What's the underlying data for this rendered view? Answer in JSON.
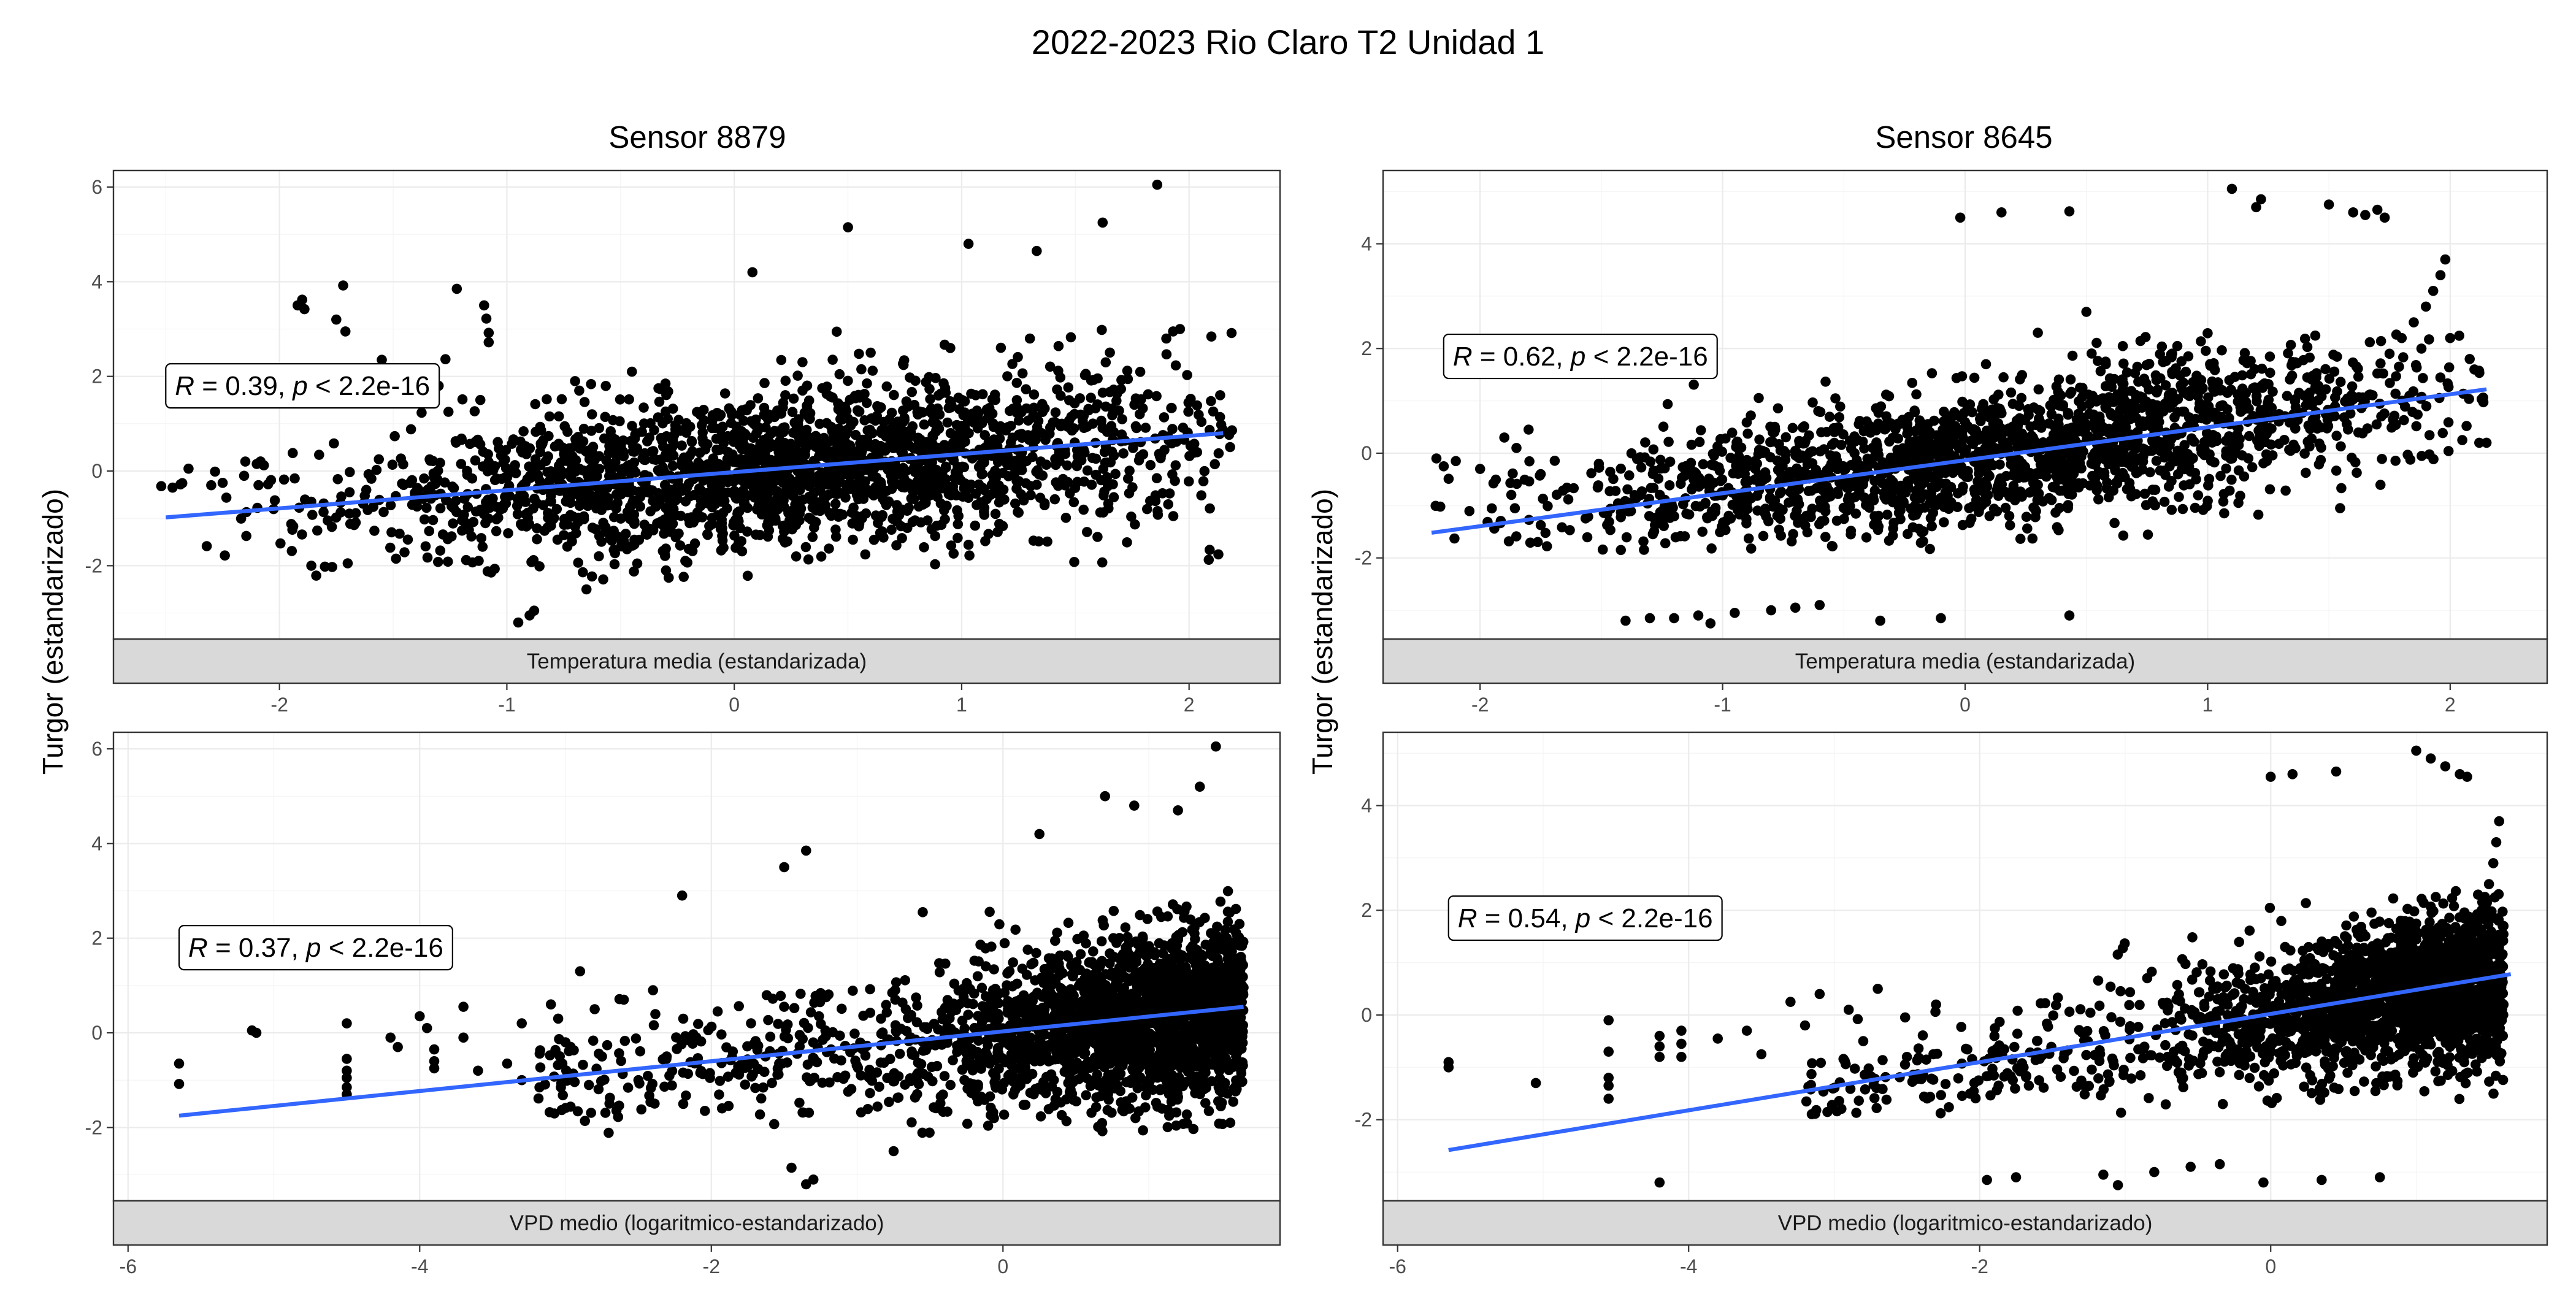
{
  "title": "2022-2023 Rio Claro T2 Unidad 1",
  "ylabel": "Turgor (estandarizado)",
  "columns": [
    "Sensor 8879",
    "Sensor 8645"
  ],
  "rows": [
    "Temperatura media (estandarizada)",
    "VPD medio (logaritmico-estandarizado)"
  ],
  "colors": {
    "points": "#000000",
    "fit_line": "#3366ff",
    "strip": "#d9d9d9",
    "grid": "#ebebeb"
  },
  "chart_data": [
    {
      "type": "scatter",
      "column": "Sensor 8879",
      "strip": "Temperatura media (estandarizada)",
      "xlabel": "Temperatura media (estandarizada)",
      "ylabel": "Turgor (estandarizado)",
      "xlim": [
        -2.73,
        2.4
      ],
      "ylim": [
        -3.55,
        6.35
      ],
      "xticks": [
        -2,
        -1,
        0,
        1,
        2
      ],
      "xtick_labels": [
        "-2",
        "-1",
        "0",
        "1",
        "2"
      ],
      "yticks": [
        -2,
        0,
        2,
        4,
        6
      ],
      "ytick_labels": [
        "-2",
        "0",
        "2",
        "4",
        "6"
      ],
      "fit_line": {
        "x": [
          -2.5,
          2.15
        ],
        "y": [
          -0.98,
          0.8
        ]
      },
      "annotation": {
        "r_label": "R",
        "r_value": " = 0.39, ",
        "p_label": "p",
        "p_value": " < 2.2e-16",
        "x": -2.5,
        "y": 1.8
      },
      "cloud": {
        "n": 2200,
        "x_center": 0.25,
        "x_spread": 0.95,
        "x_min": -2.5,
        "x_max": 2.2,
        "slope": 0.38,
        "intercept": -0.03,
        "noise": 0.72,
        "noise_scale_low": 1.0,
        "noise_scale_high": 1.25,
        "y_min": -2.3,
        "y_max": 3.0,
        "skew": 0,
        "seed": 11
      },
      "points": [
        [
          -2.52,
          -0.32
        ],
        [
          -2.47,
          -0.35
        ],
        [
          -2.4,
          0.05
        ],
        [
          -2.3,
          -0.3
        ],
        [
          -2.25,
          -0.25
        ],
        [
          -2.15,
          0.2
        ],
        [
          -2.1,
          0.15
        ],
        [
          -2.05,
          -0.28
        ],
        [
          -1.98,
          -0.18
        ],
        [
          -1.92,
          3.5
        ],
        [
          -1.9,
          3.62
        ],
        [
          -1.89,
          3.42
        ],
        [
          -1.86,
          -2.0
        ],
        [
          -1.8,
          -2.02
        ],
        [
          -1.75,
          3.2
        ],
        [
          -1.72,
          3.92
        ],
        [
          -1.71,
          2.95
        ],
        [
          -1.7,
          -1.95
        ],
        [
          -1.55,
          2.35
        ],
        [
          -1.22,
          3.85
        ],
        [
          -1.1,
          3.5
        ],
        [
          -1.09,
          3.22
        ],
        [
          -1.08,
          2.92
        ],
        [
          -1.08,
          2.72
        ],
        [
          -0.95,
          -3.2
        ],
        [
          -0.9,
          -3.05
        ],
        [
          -0.88,
          -2.95
        ],
        [
          -0.65,
          -2.5
        ],
        [
          -0.3,
          -2.1
        ],
        [
          0.08,
          4.2
        ],
        [
          0.5,
          5.15
        ],
        [
          1.03,
          4.8
        ],
        [
          1.33,
          4.65
        ],
        [
          1.62,
          5.25
        ],
        [
          1.86,
          6.05
        ],
        [
          1.9,
          2.8
        ],
        [
          1.93,
          2.95
        ],
        [
          1.96,
          3.0
        ],
        [
          0.95,
          2.6
        ],
        [
          1.3,
          2.8
        ],
        [
          -1.4,
          1.6
        ],
        [
          -1.3,
          1.8
        ],
        [
          -0.7,
          1.9
        ],
        [
          -0.45,
          2.1
        ],
        [
          0.3,
          2.3
        ],
        [
          0.6,
          2.5
        ]
      ]
    },
    {
      "type": "scatter",
      "column": "Sensor 8645",
      "strip": "Temperatura media (estandarizada)",
      "xlabel": "Temperatura media (estandarizada)",
      "ylabel": "Turgor (estandarizado)",
      "xlim": [
        -2.4,
        2.4
      ],
      "ylim": [
        -3.55,
        5.4
      ],
      "xticks": [
        -2,
        -1,
        0,
        1,
        2
      ],
      "xtick_labels": [
        "-2",
        "-1",
        "0",
        "1",
        "2"
      ],
      "yticks": [
        -2,
        0,
        2,
        4
      ],
      "ytick_labels": [
        "-2",
        "0",
        "2",
        "4"
      ],
      "fit_line": {
        "x": [
          -2.2,
          2.15
        ],
        "y": [
          -1.52,
          1.22
        ]
      },
      "annotation": {
        "r_label": "R",
        "r_value": " = 0.62, ",
        "p_label": "p",
        "p_value": " < 2.2e-16",
        "x": -2.15,
        "y": 1.85
      },
      "cloud": {
        "n": 1900,
        "x_center": 0.15,
        "x_spread": 0.95,
        "x_min": -2.2,
        "x_max": 2.15,
        "slope": 0.63,
        "intercept": -0.1,
        "noise": 0.6,
        "noise_scale_low": 1.0,
        "noise_scale_high": 1.2,
        "y_min": -1.85,
        "y_max": 2.4,
        "skew": 0,
        "seed": 23
      },
      "points": [
        [
          -2.18,
          -0.1
        ],
        [
          -2.15,
          -0.25
        ],
        [
          -2.1,
          -0.15
        ],
        [
          -2.0,
          -0.3
        ],
        [
          -1.9,
          0.3
        ],
        [
          -1.85,
          0.1
        ],
        [
          -1.8,
          0.45
        ],
        [
          -1.75,
          -0.4
        ],
        [
          -1.4,
          -3.2
        ],
        [
          -1.3,
          -3.15
        ],
        [
          -1.2,
          -3.15
        ],
        [
          -1.1,
          -3.1
        ],
        [
          -1.05,
          -3.25
        ],
        [
          -0.95,
          -3.05
        ],
        [
          -0.8,
          -3.0
        ],
        [
          -0.7,
          -2.95
        ],
        [
          -0.6,
          -2.9
        ],
        [
          -0.35,
          -3.2
        ],
        [
          -0.1,
          -3.15
        ],
        [
          0.43,
          -3.1
        ],
        [
          -0.02,
          4.5
        ],
        [
          0.15,
          4.6
        ],
        [
          0.43,
          4.62
        ],
        [
          1.1,
          5.05
        ],
        [
          1.2,
          4.7
        ],
        [
          1.22,
          4.85
        ],
        [
          1.5,
          4.75
        ],
        [
          1.6,
          4.6
        ],
        [
          1.65,
          4.55
        ],
        [
          1.7,
          4.65
        ],
        [
          1.73,
          4.5
        ],
        [
          1.75,
          1.9
        ],
        [
          1.8,
          2.2
        ],
        [
          1.85,
          2.5
        ],
        [
          1.9,
          2.8
        ],
        [
          1.93,
          3.1
        ],
        [
          1.96,
          3.4
        ],
        [
          1.98,
          3.7
        ],
        [
          2.0,
          2.2
        ],
        [
          2.1,
          1.6
        ],
        [
          2.15,
          0.2
        ],
        [
          2.12,
          0.2
        ],
        [
          2.05,
          0.25
        ],
        [
          0.5,
          2.7
        ],
        [
          0.3,
          2.3
        ]
      ]
    },
    {
      "type": "scatter",
      "column": "Sensor 8879",
      "strip": "VPD medio (logaritmico-estandarizado)",
      "xlabel": "VPD medio (logaritmico-estandarizado)",
      "ylabel": "Turgor (estandarizado)",
      "xlim": [
        -6.1,
        1.9
      ],
      "ylim": [
        -3.55,
        6.35
      ],
      "xticks": [
        -6,
        -4,
        -2,
        0
      ],
      "xtick_labels": [
        "-6",
        "-4",
        "-2",
        "0"
      ],
      "yticks": [
        -2,
        0,
        2,
        4,
        6
      ],
      "ytick_labels": [
        "-2",
        "0",
        "2",
        "4",
        "6"
      ],
      "fit_line": {
        "x": [
          -5.65,
          1.65
        ],
        "y": [
          -1.75,
          0.55
        ]
      },
      "annotation": {
        "r_label": "R",
        "r_value": " = 0.37, ",
        "p_label": "p",
        "p_value": " < 2.2e-16",
        "x": -5.65,
        "y": 1.8
      },
      "cloud": {
        "n": 2300,
        "x_center": 0.9,
        "x_spread": 1.4,
        "x_min": -3.2,
        "x_max": 1.65,
        "slope": 0.31,
        "intercept": -0.05,
        "noise": 0.7,
        "noise_scale_low": 0.8,
        "noise_scale_high": 1.35,
        "y_min": -2.2,
        "y_max": 3.0,
        "skew": 1,
        "seed": 37
      },
      "points": [
        [
          -5.65,
          -0.65
        ],
        [
          -5.65,
          -1.08
        ],
        [
          -5.15,
          0.05
        ],
        [
          -5.12,
          0.0
        ],
        [
          -4.5,
          0.2
        ],
        [
          -4.5,
          -0.55
        ],
        [
          -4.5,
          -0.8
        ],
        [
          -4.5,
          -0.95
        ],
        [
          -4.5,
          -1.15
        ],
        [
          -4.5,
          -1.3
        ],
        [
          -4.2,
          -0.1
        ],
        [
          -4.15,
          -0.3
        ],
        [
          -4.0,
          0.35
        ],
        [
          -3.95,
          0.1
        ],
        [
          -3.9,
          -0.35
        ],
        [
          -3.9,
          -0.6
        ],
        [
          -3.9,
          -0.75
        ],
        [
          -3.7,
          0.55
        ],
        [
          -3.7,
          -0.1
        ],
        [
          -3.6,
          -0.8
        ],
        [
          -3.4,
          -0.65
        ],
        [
          -3.3,
          0.2
        ],
        [
          -3.3,
          -1.0
        ],
        [
          -3.1,
          0.6
        ],
        [
          -3.05,
          0.3
        ],
        [
          -3.0,
          -0.2
        ],
        [
          -2.9,
          1.3
        ],
        [
          -2.8,
          0.5
        ],
        [
          -2.75,
          -0.5
        ],
        [
          -2.6,
          0.7
        ],
        [
          -2.5,
          -1.0
        ],
        [
          -2.4,
          0.9
        ],
        [
          -2.2,
          2.9
        ],
        [
          -1.5,
          3.5
        ],
        [
          -1.35,
          3.85
        ],
        [
          -1.45,
          -2.85
        ],
        [
          -1.35,
          -3.2
        ],
        [
          -1.3,
          -3.1
        ],
        [
          -0.75,
          -2.5
        ],
        [
          -0.55,
          2.55
        ],
        [
          0.25,
          4.2
        ],
        [
          0.7,
          5.0
        ],
        [
          0.9,
          4.8
        ],
        [
          1.2,
          4.7
        ],
        [
          1.35,
          5.2
        ],
        [
          1.46,
          6.05
        ]
      ]
    },
    {
      "type": "scatter",
      "column": "Sensor 8645",
      "strip": "VPD medio (logaritmico-estandarizado)",
      "xlabel": "VPD medio (logaritmico-estandarizado)",
      "ylabel": "Turgor (estandarizado)",
      "xlim": [
        -6.1,
        1.9
      ],
      "ylim": [
        -3.55,
        5.4
      ],
      "xticks": [
        -6,
        -4,
        -2,
        0
      ],
      "xtick_labels": [
        "-6",
        "-4",
        "-2",
        "0"
      ],
      "yticks": [
        -2,
        0,
        2,
        4
      ],
      "ytick_labels": [
        "-2",
        "0",
        "2",
        "4"
      ],
      "fit_line": {
        "x": [
          -5.65,
          1.65
        ],
        "y": [
          -2.58,
          0.78
        ]
      },
      "annotation": {
        "r_label": "R",
        "r_value": " = 0.54, ",
        "p_label": "p",
        "p_value": " < 2.2e-16",
        "x": -5.65,
        "y": 1.85
      },
      "cloud": {
        "n": 2100,
        "x_center": 0.75,
        "x_spread": 1.3,
        "x_min": -3.2,
        "x_max": 1.6,
        "slope": 0.45,
        "intercept": -0.05,
        "noise": 0.58,
        "noise_scale_low": 0.8,
        "noise_scale_high": 1.3,
        "y_min": -1.9,
        "y_max": 2.5,
        "skew": 1,
        "seed": 51
      },
      "points": [
        [
          -5.65,
          -0.9
        ],
        [
          -5.65,
          -1.0
        ],
        [
          -5.05,
          -1.3
        ],
        [
          -4.55,
          -0.1
        ],
        [
          -4.55,
          -0.7
        ],
        [
          -4.55,
          -1.2
        ],
        [
          -4.55,
          -1.35
        ],
        [
          -4.55,
          -1.6
        ],
        [
          -4.2,
          -0.4
        ],
        [
          -4.2,
          -0.6
        ],
        [
          -4.2,
          -0.8
        ],
        [
          -4.05,
          -0.3
        ],
        [
          -4.05,
          -0.55
        ],
        [
          -4.05,
          -0.8
        ],
        [
          -4.2,
          -3.2
        ],
        [
          -3.8,
          -0.45
        ],
        [
          -3.6,
          -0.3
        ],
        [
          -3.5,
          -0.75
        ],
        [
          -3.3,
          0.25
        ],
        [
          -3.2,
          -0.2
        ],
        [
          -3.1,
          0.4
        ],
        [
          -2.9,
          0.1
        ],
        [
          -2.8,
          -0.5
        ],
        [
          -2.7,
          0.5
        ],
        [
          -2.5,
          -0.8
        ],
        [
          -2.3,
          0.2
        ],
        [
          -1.95,
          -3.15
        ],
        [
          -1.75,
          -3.1
        ],
        [
          -1.15,
          -3.05
        ],
        [
          -1.05,
          -3.25
        ],
        [
          -0.8,
          -3.0
        ],
        [
          -0.55,
          -2.9
        ],
        [
          -0.35,
          -2.85
        ],
        [
          -0.05,
          -3.2
        ],
        [
          0.35,
          -3.15
        ],
        [
          0.75,
          -3.1
        ],
        [
          0.0,
          4.55
        ],
        [
          0.15,
          4.6
        ],
        [
          0.45,
          4.65
        ],
        [
          1.0,
          5.05
        ],
        [
          1.1,
          4.9
        ],
        [
          1.2,
          4.75
        ],
        [
          1.3,
          4.6
        ],
        [
          1.35,
          4.55
        ],
        [
          1.45,
          2.0
        ],
        [
          1.5,
          2.5
        ],
        [
          1.53,
          2.9
        ],
        [
          1.55,
          3.3
        ],
        [
          1.57,
          3.7
        ],
        [
          1.6,
          0.2
        ],
        [
          1.6,
          1.7
        ]
      ]
    }
  ]
}
